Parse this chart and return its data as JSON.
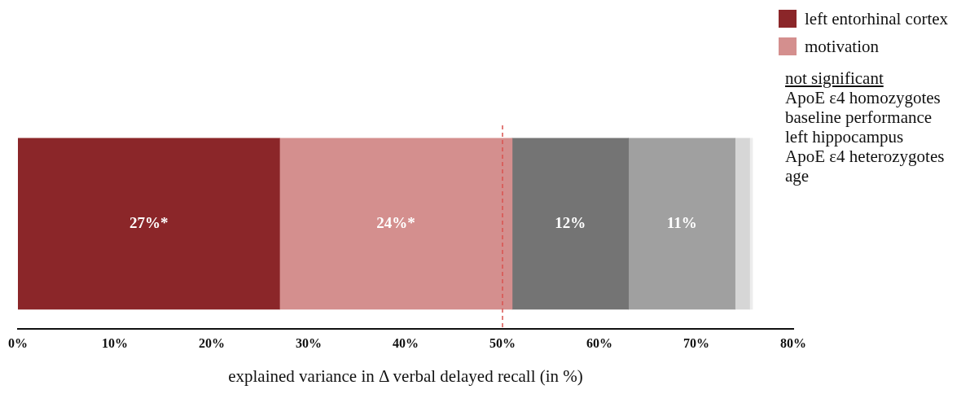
{
  "chart_data": {
    "type": "bar",
    "orientation": "horizontal",
    "stacked": true,
    "xlabel": "explained variance in Δ verbal delayed recall (in %)",
    "categories": [
      null
    ],
    "series": [
      {
        "name": "left entorhinal cortex",
        "color": "#8b2629",
        "values": [
          27
        ],
        "value_labels": [
          "27%*"
        ]
      },
      {
        "name": "motivation",
        "color": "#d48f8e",
        "values": [
          24
        ],
        "value_labels": [
          "24%*"
        ]
      },
      {
        "color": "#747474",
        "values": [
          12
        ],
        "value_labels": [
          "12%"
        ]
      },
      {
        "color": "#a0a0a0",
        "values": [
          11
        ],
        "value_labels": [
          "11%"
        ]
      },
      {
        "color": "#d6d6d6",
        "values": [
          1.5
        ],
        "value_labels": [
          null
        ]
      },
      {
        "color": "#ececec",
        "values": [
          0.3
        ],
        "value_labels": [
          null
        ]
      }
    ],
    "xlim": [
      0,
      80
    ],
    "xticks": [
      {
        "value": 0,
        "label": "0%"
      },
      {
        "value": 10,
        "label": "10%"
      },
      {
        "value": 20,
        "label": "20%"
      },
      {
        "value": 30,
        "label": "30%"
      },
      {
        "value": 40,
        "label": "40%"
      },
      {
        "value": 50,
        "label": "50%"
      },
      {
        "value": 60,
        "label": "60%"
      },
      {
        "value": 70,
        "label": "70%"
      },
      {
        "value": 80,
        "label": "80%"
      }
    ],
    "ref_lines": [
      {
        "axis": "x",
        "value": 50,
        "color": "#d9534f",
        "line_style": "dashed"
      }
    ],
    "annotations": [
      "not significant",
      "ApoE ε4 homozygotes",
      "baseline performance",
      "left hippocampus",
      "ApoE ε4 heterozygotes",
      "age"
    ],
    "grid": false,
    "legend": "top right",
    "tick_labels": "x"
  }
}
